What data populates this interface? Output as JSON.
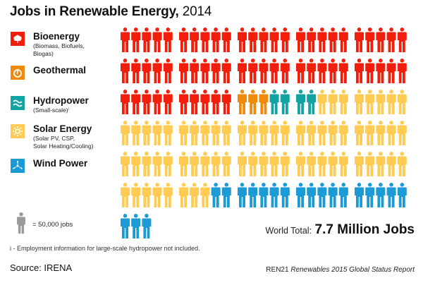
{
  "title": {
    "main": "Jobs in Renewable Energy,",
    "year": "2014"
  },
  "colors": {
    "bioenergy": "#f01e0a",
    "geothermal": "#ef8a0c",
    "hydropower": "#13a3a3",
    "solar": "#ffcb52",
    "wind": "#1b9ad6",
    "scale": "#9a9a9a"
  },
  "legend": [
    {
      "key": "bioenergy",
      "label": "Bioenergy",
      "sub": "(Biomass, Biofuels,\nBiogas)",
      "icon": "leaf-icon"
    },
    {
      "key": "geothermal",
      "label": "Geothermal",
      "sub": "",
      "icon": "geothermal-icon"
    },
    {
      "key": "hydropower",
      "label": "Hydropower",
      "sub": "(Small-scale)ⁱ",
      "icon": "water-waves-icon"
    },
    {
      "key": "solar",
      "label": "Solar Energy",
      "sub": "(Solar PV, CSP,\nSolar Heating/Cooling)",
      "icon": "sun-icon"
    },
    {
      "key": "wind",
      "label": "Wind Power",
      "sub": "",
      "icon": "wind-turbine-icon"
    }
  ],
  "scale": {
    "label": "= 50,000 jobs",
    "icon": "person-icon"
  },
  "total": {
    "label": "World Total:",
    "value": "7.7 Million Jobs"
  },
  "footnote": "i - Employment information for large-scale hydropower not included.",
  "source": "Source: IRENA",
  "report": {
    "org": "REN21",
    "title": "Renewables 2015 Global Status Report"
  },
  "chart_data": {
    "type": "pictogram",
    "title": "Jobs in Renewable Energy, 2014",
    "unit_per_icon": 50000,
    "icons_per_row": 25,
    "icons_per_group": 5,
    "categories": [
      "Bioenergy",
      "Geothermal",
      "Hydropower (Small-scale)",
      "Solar Energy",
      "Wind Power"
    ],
    "icon_counts": [
      60,
      3,
      4,
      66,
      20
    ],
    "values_jobs": [
      3000000,
      150000,
      200000,
      3300000,
      1000000
    ],
    "total_label": "7.7 Million Jobs"
  }
}
